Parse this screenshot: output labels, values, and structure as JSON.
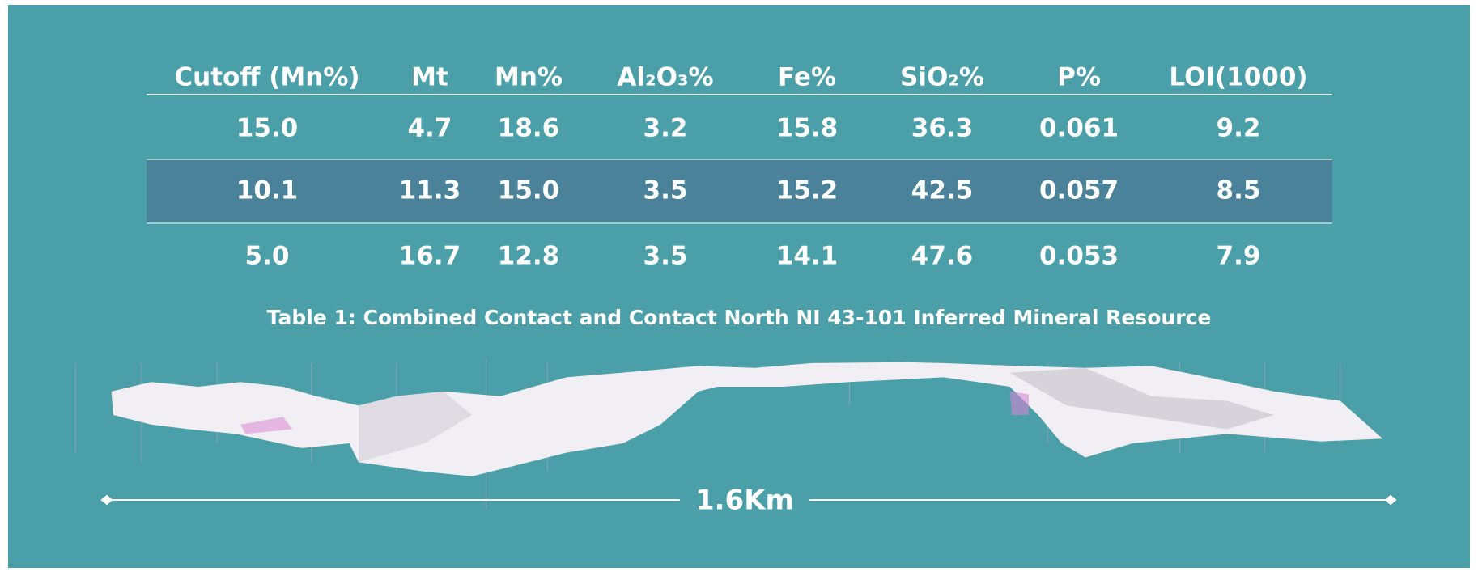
{
  "table": {
    "header": [
      "Cutoff (Mn%)",
      "Mt",
      "Mn%",
      "Al₂O₃%",
      "Fe%",
      "SiO₂%",
      "P%",
      "LOI(1000)"
    ],
    "rows": [
      [
        "15.0",
        "4.7",
        "18.6",
        "3.2",
        "15.8",
        "36.3",
        "0.061",
        "9.2"
      ],
      [
        "10.1",
        "11.3",
        "15.0",
        "3.5",
        "15.2",
        "42.5",
        "0.057",
        "8.5"
      ],
      [
        "5.0",
        "16.7",
        "12.8",
        "3.5",
        "14.1",
        "47.6",
        "0.053",
        "7.9"
      ]
    ]
  },
  "caption": "Table 1: Combined Contact and Contact North NI 43-101 Inferred Mineral Resource",
  "scale_label": "1.6Km"
}
